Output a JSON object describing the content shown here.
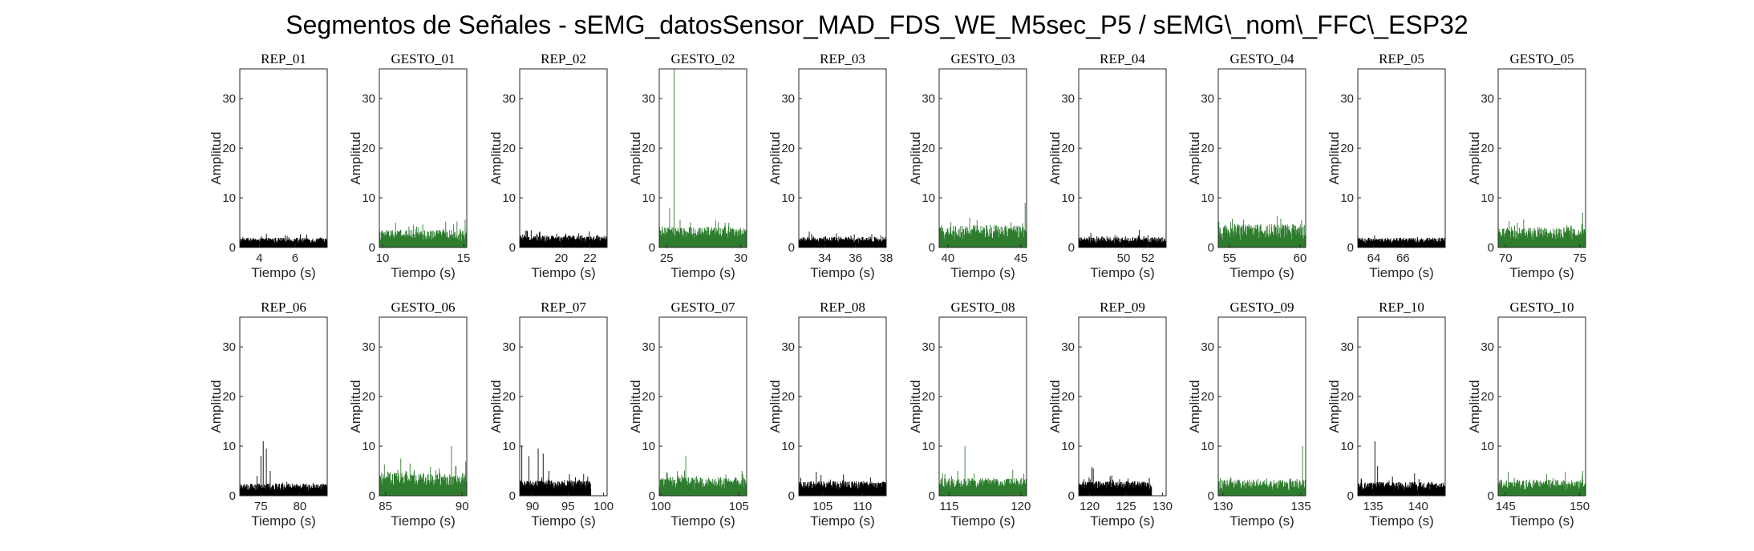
{
  "figure": {
    "title": "Segmentos de Señales - sEMG_datosSensor_MAD_FDS_WE_M5sec_P5 / sEMG\\_nom\\_FFC\\_ESP32"
  },
  "colors": {
    "rep": "#000000",
    "gesto": "#2e7d2e",
    "axis": "#262626"
  },
  "chart_data": [
    {
      "type": "area",
      "title": "REP_01",
      "xlabel": "Tiempo (s)",
      "ylabel": "Amplitud",
      "xlim": [
        2.9,
        7.8
      ],
      "ylim": [
        0,
        36
      ],
      "xticks": [
        4,
        6
      ],
      "yticks": [
        0,
        10,
        20,
        30
      ],
      "series": [
        {
          "x_range": [
            2.9,
            7.8
          ],
          "baseline": 1.2,
          "noise": 0.8,
          "spikes": []
        }
      ]
    },
    {
      "type": "area",
      "title": "GESTO_01",
      "xlabel": "Tiempo (s)",
      "ylabel": "Amplitud",
      "xlim": [
        9.8,
        15.2
      ],
      "ylim": [
        0,
        36
      ],
      "xticks": [
        10,
        15
      ],
      "yticks": [
        0,
        10,
        20,
        30
      ],
      "series": [
        {
          "x_range": [
            9.8,
            15.2
          ],
          "baseline": 2.0,
          "noise": 1.6,
          "spikes": [
            [
              10.8,
              5
            ],
            [
              11.9,
              4.6
            ],
            [
              13.9,
              5.2
            ],
            [
              15.1,
              5.6
            ]
          ]
        }
      ]
    },
    {
      "type": "area",
      "title": "REP_02",
      "xlabel": "Tiempo (s)",
      "ylabel": "Amplitud",
      "xlim": [
        17.1,
        23.2
      ],
      "ylim": [
        0,
        36
      ],
      "xticks": [
        20,
        22
      ],
      "yticks": [
        0,
        10,
        20,
        30
      ],
      "series": [
        {
          "x_range": [
            17.1,
            23.2
          ],
          "baseline": 1.5,
          "noise": 1.0,
          "spikes": [
            [
              17.9,
              3.5
            ],
            [
              18.5,
              3.2
            ],
            [
              20.3,
              2.8
            ]
          ]
        }
      ]
    },
    {
      "type": "area",
      "title": "GESTO_02",
      "xlabel": "Tiempo (s)",
      "ylabel": "Amplitud",
      "xlim": [
        24.5,
        30.4
      ],
      "ylim": [
        0,
        36
      ],
      "xticks": [
        25,
        30
      ],
      "yticks": [
        0,
        10,
        20,
        30
      ],
      "series": [
        {
          "x_range": [
            24.5,
            30.4
          ],
          "baseline": 2.5,
          "noise": 1.6,
          "spikes": [
            [
              25.2,
              8
            ],
            [
              25.5,
              36
            ],
            [
              28.3,
              5.5
            ],
            [
              29.2,
              5
            ]
          ]
        }
      ]
    },
    {
      "type": "area",
      "title": "REP_03",
      "xlabel": "Tiempo (s)",
      "ylabel": "Amplitud",
      "xlim": [
        32.3,
        38.0
      ],
      "ylim": [
        0,
        36
      ],
      "xticks": [
        34,
        36,
        38
      ],
      "yticks": [
        0,
        10,
        20,
        30
      ],
      "series": [
        {
          "x_range": [
            32.3,
            38.0
          ],
          "baseline": 1.3,
          "noise": 0.9,
          "spikes": []
        }
      ]
    },
    {
      "type": "area",
      "title": "GESTO_03",
      "xlabel": "Tiempo (s)",
      "ylabel": "Amplitud",
      "xlim": [
        39.4,
        45.4
      ],
      "ylim": [
        0,
        36
      ],
      "xticks": [
        40,
        45
      ],
      "yticks": [
        0,
        10,
        20,
        30
      ],
      "series": [
        {
          "x_range": [
            39.4,
            45.4
          ],
          "baseline": 2.4,
          "noise": 2.2,
          "spikes": [
            [
              41.5,
              6
            ],
            [
              42.0,
              5.5
            ],
            [
              45.3,
              9
            ]
          ]
        }
      ]
    },
    {
      "type": "area",
      "title": "REP_04",
      "xlabel": "Tiempo (s)",
      "ylabel": "Amplitud",
      "xlim": [
        46.3,
        53.5
      ],
      "ylim": [
        0,
        36
      ],
      "xticks": [
        50,
        52
      ],
      "yticks": [
        0,
        10,
        20,
        30
      ],
      "series": [
        {
          "x_range": [
            46.3,
            53.5
          ],
          "baseline": 1.2,
          "noise": 0.9,
          "spikes": [
            [
              51.3,
              3.6
            ],
            [
              52.0,
              2.5
            ]
          ]
        }
      ]
    },
    {
      "type": "area",
      "title": "GESTO_04",
      "xlabel": "Tiempo (s)",
      "ylabel": "Amplitud",
      "xlim": [
        54.2,
        60.4
      ],
      "ylim": [
        0,
        36
      ],
      "xticks": [
        55,
        60
      ],
      "yticks": [
        0,
        10,
        20,
        30
      ],
      "series": [
        {
          "x_range": [
            54.2,
            60.4
          ],
          "baseline": 2.4,
          "noise": 2.4,
          "spikes": [
            [
              55.2,
              5.8
            ],
            [
              56.0,
              5.6
            ]
          ]
        }
      ]
    },
    {
      "type": "area",
      "title": "REP_05",
      "xlabel": "Tiempo (s)",
      "ylabel": "Amplitud",
      "xlim": [
        62.9,
        68.9
      ],
      "ylim": [
        0,
        36
      ],
      "xticks": [
        64,
        66
      ],
      "yticks": [
        0,
        10,
        20,
        30
      ],
      "series": [
        {
          "x_range": [
            62.9,
            68.9
          ],
          "baseline": 1.2,
          "noise": 0.8,
          "spikes": []
        }
      ]
    },
    {
      "type": "area",
      "title": "GESTO_05",
      "xlabel": "Tiempo (s)",
      "ylabel": "Amplitud",
      "xlim": [
        69.5,
        75.4
      ],
      "ylim": [
        0,
        36
      ],
      "xticks": [
        70,
        75
      ],
      "yticks": [
        0,
        10,
        20,
        30
      ],
      "series": [
        {
          "x_range": [
            69.5,
            75.4
          ],
          "baseline": 2.2,
          "noise": 2.0,
          "spikes": [
            [
              70.8,
              5
            ],
            [
              75.2,
              7
            ]
          ]
        }
      ]
    },
    {
      "type": "area",
      "title": "REP_06",
      "xlabel": "Tiempo (s)",
      "ylabel": "Amplitud",
      "xlim": [
        72.3,
        83.5
      ],
      "ylim": [
        0,
        36
      ],
      "xticks": [
        75,
        80
      ],
      "yticks": [
        0,
        10,
        20,
        30
      ],
      "series": [
        {
          "x_range": [
            72.3,
            83.5
          ],
          "baseline": 1.5,
          "noise": 1.0,
          "spikes": [
            [
              74.5,
              4
            ],
            [
              75.0,
              8
            ],
            [
              75.3,
              11
            ],
            [
              75.7,
              9.5
            ],
            [
              76.2,
              5
            ]
          ]
        }
      ]
    },
    {
      "type": "area",
      "title": "GESTO_06",
      "xlabel": "Tiempo (s)",
      "ylabel": "Amplitud",
      "xlim": [
        84.6,
        90.3
      ],
      "ylim": [
        0,
        36
      ],
      "xticks": [
        85,
        90
      ],
      "yticks": [
        0,
        10,
        20,
        30
      ],
      "series": [
        {
          "x_range": [
            84.6,
            90.3
          ],
          "baseline": 2.5,
          "noise": 2.2,
          "spikes": [
            [
              86.0,
              7.5
            ],
            [
              86.6,
              6.5
            ],
            [
              88.5,
              5.5
            ],
            [
              89.3,
              10
            ],
            [
              89.6,
              6
            ]
          ]
        }
      ]
    },
    {
      "type": "area",
      "title": "REP_07",
      "xlabel": "Tiempo (s)",
      "ylabel": "Amplitud",
      "xlim": [
        88.2,
        100.5
      ],
      "ylim": [
        0,
        36
      ],
      "xticks": [
        90,
        95,
        100
      ],
      "yticks": [
        0,
        10,
        20,
        30
      ],
      "series": [
        {
          "x_range": [
            88.2,
            98.2
          ],
          "baseline": 1.8,
          "noise": 1.4,
          "spikes": [
            [
              88.5,
              10
            ],
            [
              89.5,
              8
            ],
            [
              90.8,
              9.5
            ],
            [
              91.5,
              8.5
            ],
            [
              92.3,
              5
            ]
          ]
        }
      ]
    },
    {
      "type": "area",
      "title": "GESTO_07",
      "xlabel": "Tiempo (s)",
      "ylabel": "Amplitud",
      "xlim": [
        99.9,
        105.5
      ],
      "ylim": [
        0,
        36
      ],
      "xticks": [
        100,
        105
      ],
      "yticks": [
        0,
        10,
        20,
        30
      ],
      "series": [
        {
          "x_range": [
            99.9,
            105.5
          ],
          "baseline": 2.0,
          "noise": 1.8,
          "spikes": [
            [
              101.6,
              8
            ],
            [
              105.2,
              5
            ]
          ]
        }
      ]
    },
    {
      "type": "area",
      "title": "REP_08",
      "xlabel": "Tiempo (s)",
      "ylabel": "Amplitud",
      "xlim": [
        102.0,
        113.0
      ],
      "ylim": [
        0,
        36
      ],
      "xticks": [
        105,
        110
      ],
      "yticks": [
        0,
        10,
        20,
        30
      ],
      "series": [
        {
          "x_range": [
            102.0,
            113.0
          ],
          "baseline": 1.7,
          "noise": 1.3,
          "spikes": [
            [
              104.2,
              4.8
            ],
            [
              104.8,
              4.2
            ]
          ]
        }
      ]
    },
    {
      "type": "area",
      "title": "GESTO_08",
      "xlabel": "Tiempo (s)",
      "ylabel": "Amplitud",
      "xlim": [
        114.3,
        120.4
      ],
      "ylim": [
        0,
        36
      ],
      "xticks": [
        115,
        120
      ],
      "yticks": [
        0,
        10,
        20,
        30
      ],
      "series": [
        {
          "x_range": [
            114.3,
            120.4
          ],
          "baseline": 2.0,
          "noise": 1.6,
          "spikes": [
            [
              115.6,
              5
            ],
            [
              116.1,
              10
            ]
          ]
        }
      ]
    },
    {
      "type": "area",
      "title": "REP_09",
      "xlabel": "Tiempo (s)",
      "ylabel": "Amplitud",
      "xlim": [
        118.5,
        130.5
      ],
      "ylim": [
        0,
        36
      ],
      "xticks": [
        120,
        125,
        130
      ],
      "yticks": [
        0,
        10,
        20,
        30
      ],
      "series": [
        {
          "x_range": [
            118.5,
            128.5
          ],
          "baseline": 1.7,
          "noise": 1.2,
          "spikes": [
            [
              120.3,
              5.8
            ],
            [
              120.5,
              5.5
            ],
            [
              123.2,
              3.2
            ]
          ]
        }
      ]
    },
    {
      "type": "area",
      "title": "GESTO_09",
      "xlabel": "Tiempo (s)",
      "ylabel": "Amplitud",
      "xlim": [
        129.7,
        135.3
      ],
      "ylim": [
        0,
        36
      ],
      "xticks": [
        130,
        135
      ],
      "yticks": [
        0,
        10,
        20,
        30
      ],
      "series": [
        {
          "x_range": [
            129.7,
            135.3
          ],
          "baseline": 1.7,
          "noise": 1.6,
          "spikes": [
            [
              132.8,
              3.5
            ],
            [
              135.1,
              10
            ]
          ]
        }
      ]
    },
    {
      "type": "area",
      "title": "REP_10",
      "xlabel": "Tiempo (s)",
      "ylabel": "Amplitud",
      "xlim": [
        133.3,
        143.0
      ],
      "ylim": [
        0,
        36
      ],
      "xticks": [
        135,
        140
      ],
      "yticks": [
        0,
        10,
        20,
        30
      ],
      "series": [
        {
          "x_range": [
            133.3,
            143.0
          ],
          "baseline": 1.6,
          "noise": 1.2,
          "spikes": [
            [
              135.2,
              11
            ],
            [
              135.5,
              6
            ],
            [
              139.6,
              4.5
            ]
          ]
        }
      ]
    },
    {
      "type": "area",
      "title": "GESTO_10",
      "xlabel": "Tiempo (s)",
      "ylabel": "Amplitud",
      "xlim": [
        144.5,
        150.4
      ],
      "ylim": [
        0,
        36
      ],
      "xticks": [
        145,
        150
      ],
      "yticks": [
        0,
        10,
        20,
        30
      ],
      "series": [
        {
          "x_range": [
            144.5,
            150.4
          ],
          "baseline": 1.7,
          "noise": 1.6,
          "spikes": [
            [
              150.2,
              5
            ]
          ]
        }
      ]
    }
  ]
}
